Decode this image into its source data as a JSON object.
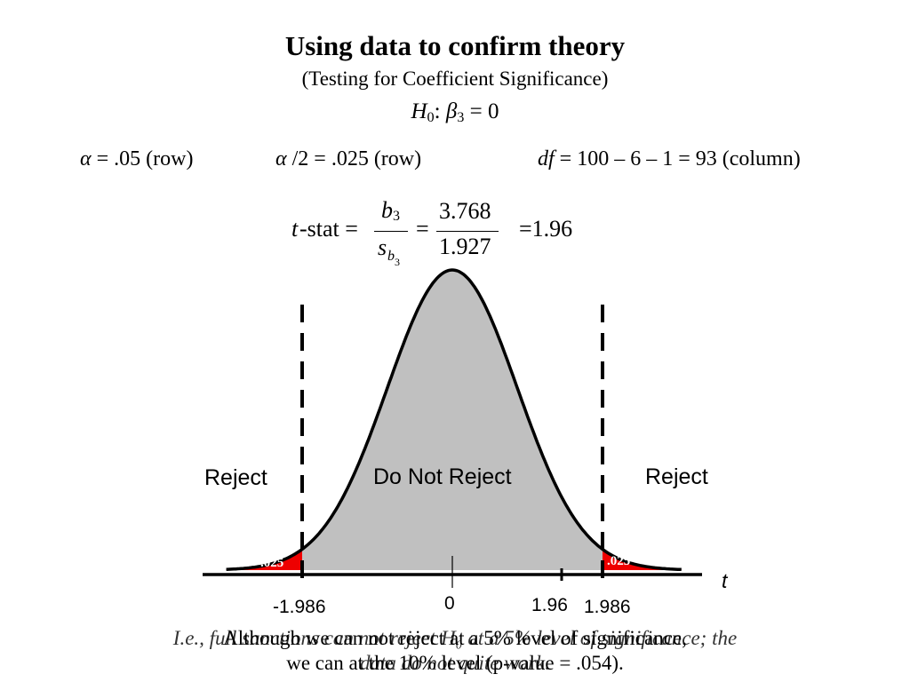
{
  "header": {
    "title": "Using data to confirm theory",
    "subtitle": "(Testing for Coefficient Significance)",
    "hypothesis": {
      "H": "H",
      "H_sub": "0",
      "colon": ": ",
      "beta": "β",
      "beta_sub": "3",
      "rest": " = 0"
    }
  },
  "criteria": {
    "alpha": {
      "sym": "α",
      "text": " = .05 (row)"
    },
    "alpha_half": {
      "sym": "α",
      "text": " /2 = .025 (row)"
    },
    "df": {
      "sym": "df",
      "text": " = 100 – 6 – 1 = 93 (column)"
    }
  },
  "tstat": {
    "t": "t",
    "label": "-stat =",
    "num_b": "b",
    "num_sub": "3",
    "den_s": "s",
    "den_sub": "b",
    "den_subsub": "3",
    "eq": "=",
    "num_val": "3.768",
    "den_val": "1.927",
    "result": "=1.96"
  },
  "diagram": {
    "regions": {
      "left": "Reject",
      "middle": "Do Not Reject",
      "right": "Reject"
    },
    "tail_area_left": ".025",
    "tail_area_right": ".025",
    "axis_label": "t",
    "ticks": {
      "neg_crit": "-1.986",
      "zero": "0",
      "tstat": "1.96",
      "pos_crit": "1.986"
    },
    "critical_value": 1.986,
    "tstat_value": 1.96,
    "colors": {
      "body_fill": "#c0c0c0",
      "tail_fill": "#ee0000",
      "curve": "#000000"
    }
  },
  "notes": {
    "italic_line1": "I.e., full sanctions can not reject H₀ at a 5% level of significance; the",
    "italic_line2": "data do not quite work.",
    "main_line1": "Although we can not reject at a 5% level of significance,",
    "main_line2": "we can at the 10% level (p-value = .054)."
  }
}
